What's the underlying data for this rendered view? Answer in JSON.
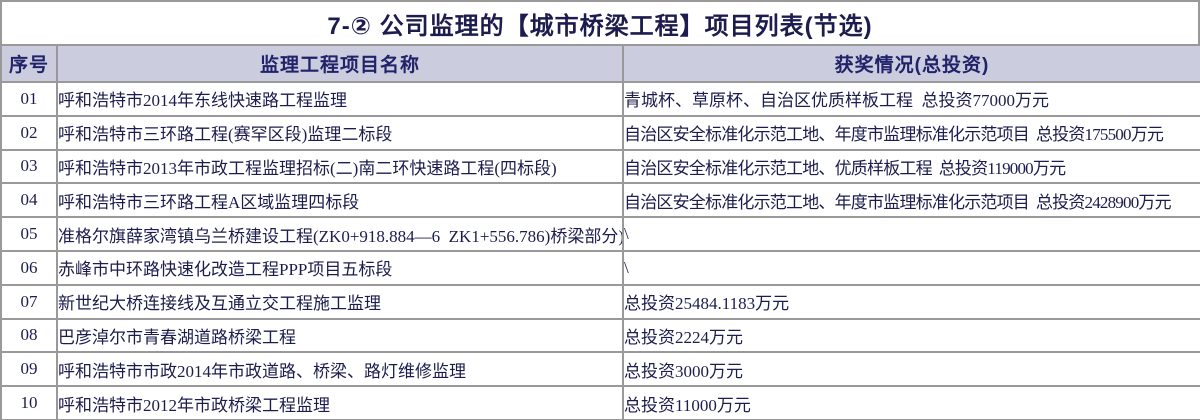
{
  "title": "7-② 公司监理的【城市桥梁工程】项目列表(节选)",
  "columns": {
    "seq": "序号",
    "name": "监理工程项目名称",
    "award": "获奖情况(总投资)"
  },
  "rows": [
    {
      "seq": "01",
      "name": "呼和浩特市2014年东线快速路工程监理",
      "award": "青城杯、草原杯、自治区优质样板工程  总投资77000万元"
    },
    {
      "seq": "02",
      "name": "呼和浩特市三环路工程(赛罕区段)监理二标段",
      "award": "自治区安全标准化示范工地、年度市监理标准化示范项目  总投资175500万元"
    },
    {
      "seq": "03",
      "name": "呼和浩特市2013年市政工程监理招标(二)南二环快速路工程(四标段)",
      "award": "自治区安全标准化示范工地、优质样板工程  总投资119000万元"
    },
    {
      "seq": "04",
      "name": "呼和浩特市三环路工程A区域监理四标段",
      "award": "自治区安全标准化示范工地、年度市监理标准化示范项目  总投资2428900万元"
    },
    {
      "seq": "05",
      "name": "准格尔旗薛家湾镇乌兰桥建设工程(ZK0+918.884—6  ZK1+556.786)桥梁部分)",
      "award": "\\"
    },
    {
      "seq": "06",
      "name": "赤峰市中环路快速化改造工程PPP项目五标段",
      "award": "\\"
    },
    {
      "seq": "07",
      "name": "新世纪大桥连接线及互通立交工程施工监理",
      "award": "总投资25484.1183万元"
    },
    {
      "seq": "08",
      "name": "巴彦淖尔市青春湖道路桥梁工程",
      "award": "总投资2224万元"
    },
    {
      "seq": "09",
      "name": "呼和浩特市市政2014年市政道路、桥梁、路灯维修监理",
      "award": "总投资3000万元"
    },
    {
      "seq": "10",
      "name": "呼和浩特市2012年市政桥梁工程监理",
      "award": "总投资11000万元"
    }
  ],
  "colors": {
    "text": "#1c1c4e",
    "header_text": "#22226a",
    "header_bg": "#cbccdd",
    "border": "#999999",
    "background": "#ffffff"
  }
}
